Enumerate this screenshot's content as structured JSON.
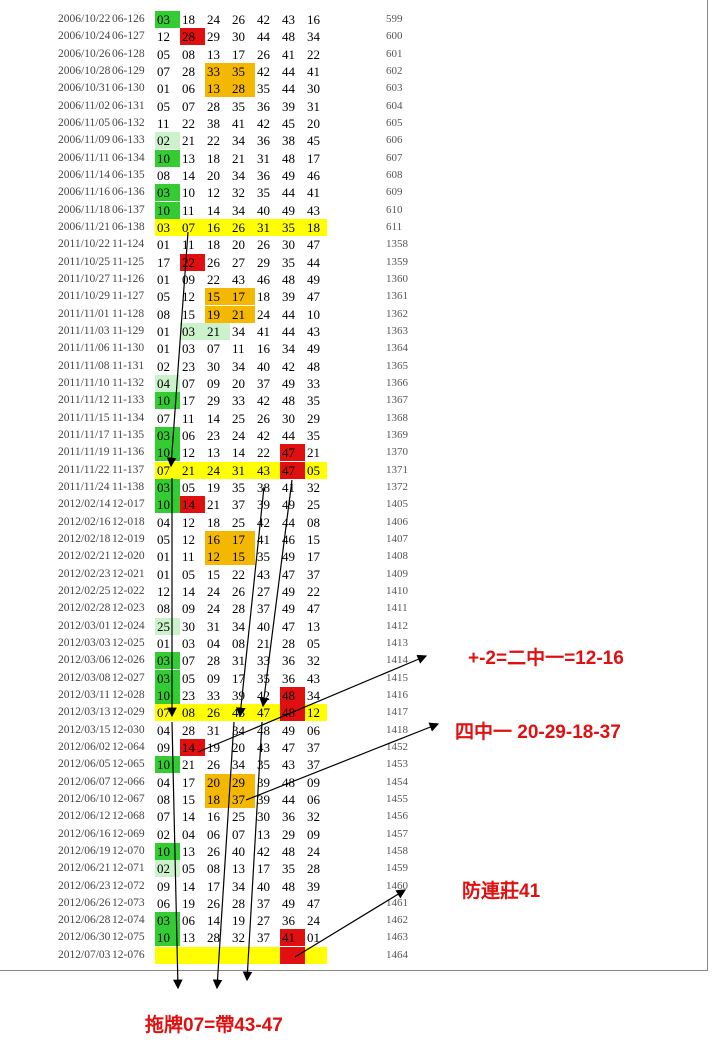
{
  "colors": {
    "G": "#33cc33",
    "L": "#ccf2cc",
    "R": "#e01010",
    "O": "#f5b800",
    "Y": "#ffff00"
  },
  "rows": [
    {
      "d": "2006/10/22",
      "i": "06-126",
      "n": [
        "03",
        "18",
        "24",
        "26",
        "42",
        "43",
        "16"
      ],
      "s": "599",
      "h": {
        "0": "G"
      }
    },
    {
      "d": "2006/10/24",
      "i": "06-127",
      "n": [
        "12",
        "28",
        "29",
        "30",
        "44",
        "48",
        "34"
      ],
      "s": "600",
      "h": {
        "1": "R"
      }
    },
    {
      "d": "2006/10/26",
      "i": "06-128",
      "n": [
        "05",
        "08",
        "13",
        "17",
        "26",
        "41",
        "22"
      ],
      "s": "601",
      "h": {}
    },
    {
      "d": "2006/10/28",
      "i": "06-129",
      "n": [
        "07",
        "28",
        "33",
        "35",
        "42",
        "44",
        "41"
      ],
      "s": "602",
      "h": {
        "2": "O",
        "3": "O"
      }
    },
    {
      "d": "2006/10/31",
      "i": "06-130",
      "n": [
        "01",
        "06",
        "13",
        "28",
        "35",
        "44",
        "30"
      ],
      "s": "603",
      "h": {
        "2": "O",
        "3": "O"
      }
    },
    {
      "d": "2006/11/02",
      "i": "06-131",
      "n": [
        "05",
        "07",
        "28",
        "35",
        "36",
        "39",
        "31"
      ],
      "s": "604",
      "h": {}
    },
    {
      "d": "2006/11/05",
      "i": "06-132",
      "n": [
        "11",
        "22",
        "38",
        "41",
        "42",
        "45",
        "20"
      ],
      "s": "605",
      "h": {}
    },
    {
      "d": "2006/11/09",
      "i": "06-133",
      "n": [
        "02",
        "21",
        "22",
        "34",
        "36",
        "38",
        "45"
      ],
      "s": "606",
      "h": {
        "0": "L"
      }
    },
    {
      "d": "2006/11/11",
      "i": "06-134",
      "n": [
        "10",
        "13",
        "18",
        "21",
        "31",
        "48",
        "17"
      ],
      "s": "607",
      "h": {
        "0": "G"
      }
    },
    {
      "d": "2006/11/14",
      "i": "06-135",
      "n": [
        "08",
        "14",
        "20",
        "34",
        "36",
        "49",
        "46"
      ],
      "s": "608",
      "h": {}
    },
    {
      "d": "2006/11/16",
      "i": "06-136",
      "n": [
        "03",
        "10",
        "12",
        "32",
        "35",
        "44",
        "41"
      ],
      "s": "609",
      "h": {
        "0": "G"
      }
    },
    {
      "d": "2006/11/18",
      "i": "06-137",
      "n": [
        "10",
        "11",
        "14",
        "34",
        "40",
        "49",
        "43"
      ],
      "s": "610",
      "h": {
        "0": "G"
      }
    },
    {
      "d": "2006/11/21",
      "i": "06-138",
      "n": [
        "03",
        "07",
        "16",
        "26",
        "31",
        "35",
        "18"
      ],
      "s": "611",
      "h": {},
      "band": true
    },
    {
      "d": "2011/10/22",
      "i": "11-124",
      "n": [
        "01",
        "11",
        "18",
        "20",
        "26",
        "30",
        "47"
      ],
      "s": "1358",
      "h": {}
    },
    {
      "d": "2011/10/25",
      "i": "11-125",
      "n": [
        "17",
        "22",
        "26",
        "27",
        "29",
        "35",
        "44"
      ],
      "s": "1359",
      "h": {
        "1": "R"
      }
    },
    {
      "d": "2011/10/27",
      "i": "11-126",
      "n": [
        "01",
        "09",
        "22",
        "43",
        "46",
        "48",
        "49"
      ],
      "s": "1360",
      "h": {}
    },
    {
      "d": "2011/10/29",
      "i": "11-127",
      "n": [
        "05",
        "12",
        "15",
        "17",
        "18",
        "39",
        "47"
      ],
      "s": "1361",
      "h": {
        "2": "O",
        "3": "O"
      }
    },
    {
      "d": "2011/11/01",
      "i": "11-128",
      "n": [
        "08",
        "15",
        "19",
        "21",
        "24",
        "44",
        "10"
      ],
      "s": "1362",
      "h": {
        "2": "O",
        "3": "O"
      }
    },
    {
      "d": "2011/11/03",
      "i": "11-129",
      "n": [
        "01",
        "03",
        "21",
        "34",
        "41",
        "44",
        "43"
      ],
      "s": "1363",
      "h": {
        "1": "L",
        "2": "L"
      }
    },
    {
      "d": "2011/11/06",
      "i": "11-130",
      "n": [
        "01",
        "03",
        "07",
        "11",
        "16",
        "34",
        "49"
      ],
      "s": "1364",
      "h": {}
    },
    {
      "d": "2011/11/08",
      "i": "11-131",
      "n": [
        "02",
        "23",
        "30",
        "34",
        "40",
        "42",
        "48"
      ],
      "s": "1365",
      "h": {}
    },
    {
      "d": "2011/11/10",
      "i": "11-132",
      "n": [
        "04",
        "07",
        "09",
        "20",
        "37",
        "49",
        "33"
      ],
      "s": "1366",
      "h": {
        "0": "L"
      }
    },
    {
      "d": "2011/11/12",
      "i": "11-133",
      "n": [
        "10",
        "17",
        "29",
        "33",
        "42",
        "48",
        "35"
      ],
      "s": "1367",
      "h": {
        "0": "G"
      }
    },
    {
      "d": "2011/11/15",
      "i": "11-134",
      "n": [
        "07",
        "11",
        "14",
        "25",
        "26",
        "30",
        "29"
      ],
      "s": "1368",
      "h": {}
    },
    {
      "d": "2011/11/17",
      "i": "11-135",
      "n": [
        "03",
        "06",
        "23",
        "24",
        "42",
        "44",
        "35"
      ],
      "s": "1369",
      "h": {
        "0": "G"
      }
    },
    {
      "d": "2011/11/19",
      "i": "11-136",
      "n": [
        "10",
        "12",
        "13",
        "14",
        "22",
        "47",
        "21"
      ],
      "s": "1370",
      "h": {
        "0": "G",
        "5": "R"
      }
    },
    {
      "d": "2011/11/22",
      "i": "11-137",
      "n": [
        "07",
        "21",
        "24",
        "31",
        "43",
        "47",
        "05"
      ],
      "s": "1371",
      "h": {
        "5": "R"
      },
      "band": true
    },
    {
      "d": "2011/11/24",
      "i": "11-138",
      "n": [
        "03",
        "05",
        "19",
        "35",
        "38",
        "41",
        "32"
      ],
      "s": "1372",
      "h": {
        "0": "G"
      }
    },
    {
      "d": "2012/02/14",
      "i": "12-017",
      "n": [
        "10",
        "14",
        "21",
        "37",
        "39",
        "49",
        "25"
      ],
      "s": "1405",
      "h": {
        "0": "G",
        "1": "R"
      }
    },
    {
      "d": "2012/02/16",
      "i": "12-018",
      "n": [
        "04",
        "12",
        "18",
        "25",
        "42",
        "44",
        "08"
      ],
      "s": "1406",
      "h": {}
    },
    {
      "d": "2012/02/18",
      "i": "12-019",
      "n": [
        "05",
        "12",
        "16",
        "17",
        "41",
        "46",
        "15"
      ],
      "s": "1407",
      "h": {
        "2": "O",
        "3": "O"
      }
    },
    {
      "d": "2012/02/21",
      "i": "12-020",
      "n": [
        "01",
        "11",
        "12",
        "15",
        "35",
        "49",
        "17"
      ],
      "s": "1408",
      "h": {
        "2": "O",
        "3": "O"
      }
    },
    {
      "d": "2012/02/23",
      "i": "12-021",
      "n": [
        "01",
        "05",
        "15",
        "22",
        "43",
        "47",
        "37"
      ],
      "s": "1409",
      "h": {}
    },
    {
      "d": "2012/02/25",
      "i": "12-022",
      "n": [
        "12",
        "14",
        "24",
        "26",
        "27",
        "49",
        "22"
      ],
      "s": "1410",
      "h": {}
    },
    {
      "d": "2012/02/28",
      "i": "12-023",
      "n": [
        "08",
        "09",
        "24",
        "28",
        "37",
        "49",
        "47"
      ],
      "s": "1411",
      "h": {}
    },
    {
      "d": "2012/03/01",
      "i": "12-024",
      "n": [
        "25",
        "30",
        "31",
        "34",
        "40",
        "47",
        "13"
      ],
      "s": "1412",
      "h": {
        "0": "L"
      }
    },
    {
      "d": "2012/03/03",
      "i": "12-025",
      "n": [
        "01",
        "03",
        "04",
        "08",
        "21",
        "28",
        "05"
      ],
      "s": "1413",
      "h": {}
    },
    {
      "d": "2012/03/06",
      "i": "12-026",
      "n": [
        "03",
        "07",
        "28",
        "31",
        "33",
        "36",
        "32"
      ],
      "s": "1414",
      "h": {
        "0": "G"
      }
    },
    {
      "d": "2012/03/08",
      "i": "12-027",
      "n": [
        "03",
        "05",
        "09",
        "17",
        "35",
        "36",
        "43"
      ],
      "s": "1415",
      "h": {
        "0": "G"
      }
    },
    {
      "d": "2012/03/11",
      "i": "12-028",
      "n": [
        "10",
        "23",
        "33",
        "39",
        "42",
        "48",
        "34"
      ],
      "s": "1416",
      "h": {
        "0": "G",
        "5": "R"
      }
    },
    {
      "d": "2012/03/13",
      "i": "12-029",
      "n": [
        "07",
        "08",
        "26",
        "43",
        "47",
        "48",
        "12"
      ],
      "s": "1417",
      "h": {
        "5": "R"
      },
      "band": true
    },
    {
      "d": "2012/03/15",
      "i": "12-030",
      "n": [
        "04",
        "28",
        "31",
        "34",
        "48",
        "49",
        "06"
      ],
      "s": "1418",
      "h": {}
    },
    {
      "d": "2012/06/02",
      "i": "12-064",
      "n": [
        "09",
        "14",
        "19",
        "20",
        "43",
        "47",
        "37"
      ],
      "s": "1452",
      "h": {
        "1": "R"
      }
    },
    {
      "d": "2012/06/05",
      "i": "12-065",
      "n": [
        "10",
        "21",
        "26",
        "34",
        "35",
        "43",
        "37"
      ],
      "s": "1453",
      "h": {
        "0": "G"
      }
    },
    {
      "d": "2012/06/07",
      "i": "12-066",
      "n": [
        "04",
        "17",
        "20",
        "29",
        "39",
        "48",
        "09"
      ],
      "s": "1454",
      "h": {
        "2": "O",
        "3": "O"
      }
    },
    {
      "d": "2012/06/10",
      "i": "12-067",
      "n": [
        "08",
        "15",
        "18",
        "37",
        "39",
        "44",
        "06"
      ],
      "s": "1455",
      "h": {
        "2": "O",
        "3": "O"
      }
    },
    {
      "d": "2012/06/12",
      "i": "12-068",
      "n": [
        "07",
        "14",
        "16",
        "25",
        "30",
        "36",
        "32"
      ],
      "s": "1456",
      "h": {}
    },
    {
      "d": "2012/06/16",
      "i": "12-069",
      "n": [
        "02",
        "04",
        "06",
        "07",
        "13",
        "29",
        "09"
      ],
      "s": "1457",
      "h": {}
    },
    {
      "d": "2012/06/19",
      "i": "12-070",
      "n": [
        "10",
        "13",
        "26",
        "40",
        "42",
        "48",
        "24"
      ],
      "s": "1458",
      "h": {
        "0": "G"
      }
    },
    {
      "d": "2012/06/21",
      "i": "12-071",
      "n": [
        "02",
        "05",
        "08",
        "13",
        "17",
        "35",
        "28"
      ],
      "s": "1459",
      "h": {
        "0": "L"
      }
    },
    {
      "d": "2012/06/23",
      "i": "12-072",
      "n": [
        "09",
        "14",
        "17",
        "34",
        "40",
        "48",
        "39"
      ],
      "s": "1460",
      "h": {}
    },
    {
      "d": "2012/06/26",
      "i": "12-073",
      "n": [
        "06",
        "19",
        "26",
        "28",
        "37",
        "49",
        "47"
      ],
      "s": "1461",
      "h": {}
    },
    {
      "d": "2012/06/28",
      "i": "12-074",
      "n": [
        "03",
        "06",
        "14",
        "19",
        "27",
        "36",
        "24"
      ],
      "s": "1462",
      "h": {
        "0": "G"
      }
    },
    {
      "d": "2012/06/30",
      "i": "12-075",
      "n": [
        "10",
        "13",
        "28",
        "32",
        "37",
        "41",
        "01"
      ],
      "s": "1463",
      "h": {
        "0": "G",
        "5": "R"
      }
    },
    {
      "d": "2012/07/03",
      "i": "12-076",
      "n": [
        "",
        "",
        "",
        "",
        "",
        "",
        ""
      ],
      "s": "1464",
      "h": {
        "5": "R"
      },
      "band": true
    }
  ],
  "notes": {
    "plus_minus": "+-2=二中一=12-16",
    "four_mid": "四中一 20-29-18-37",
    "anti_repeat": "防連莊41",
    "drag": "拖牌07=帶43-47"
  }
}
